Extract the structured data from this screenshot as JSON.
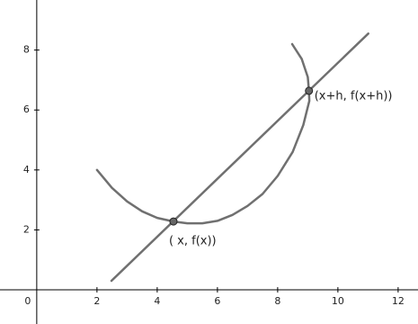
{
  "chart_data": {
    "type": "line",
    "xlim": [
      -1.22,
      12.66
    ],
    "ylim": [
      -1.14,
      9.67
    ],
    "xticks": [
      2,
      4,
      6,
      8,
      10,
      12
    ],
    "yticks": [
      2,
      4,
      6,
      8
    ],
    "origin_label": "0",
    "grid": false,
    "series": [
      {
        "color": "#707070",
        "x": [
          2,
          2.5,
          3,
          3.5,
          4,
          4.54,
          5,
          5.5,
          6,
          6.5,
          7,
          7.5,
          8,
          8.5,
          8.85,
          9.05,
          9.04,
          9.0,
          8.8,
          8.48
        ],
        "values": [
          4.0,
          3.4,
          2.95,
          2.62,
          2.4,
          2.28,
          2.22,
          2.22,
          2.3,
          2.5,
          2.8,
          3.2,
          3.8,
          4.6,
          5.5,
          6.3,
          6.64,
          7.1,
          7.7,
          8.2
        ]
      },
      {
        "color": "#707070",
        "x": [
          2.48,
          11.01
        ],
        "values": [
          0.3,
          8.55
        ]
      }
    ],
    "points": [
      {
        "x": 4.54,
        "y": 2.28,
        "label": "( x, f(x))",
        "color": "#666666"
      },
      {
        "x": 9.04,
        "y": 6.64,
        "label": "(x+h, f(x+h))",
        "color": "#666666"
      }
    ]
  }
}
